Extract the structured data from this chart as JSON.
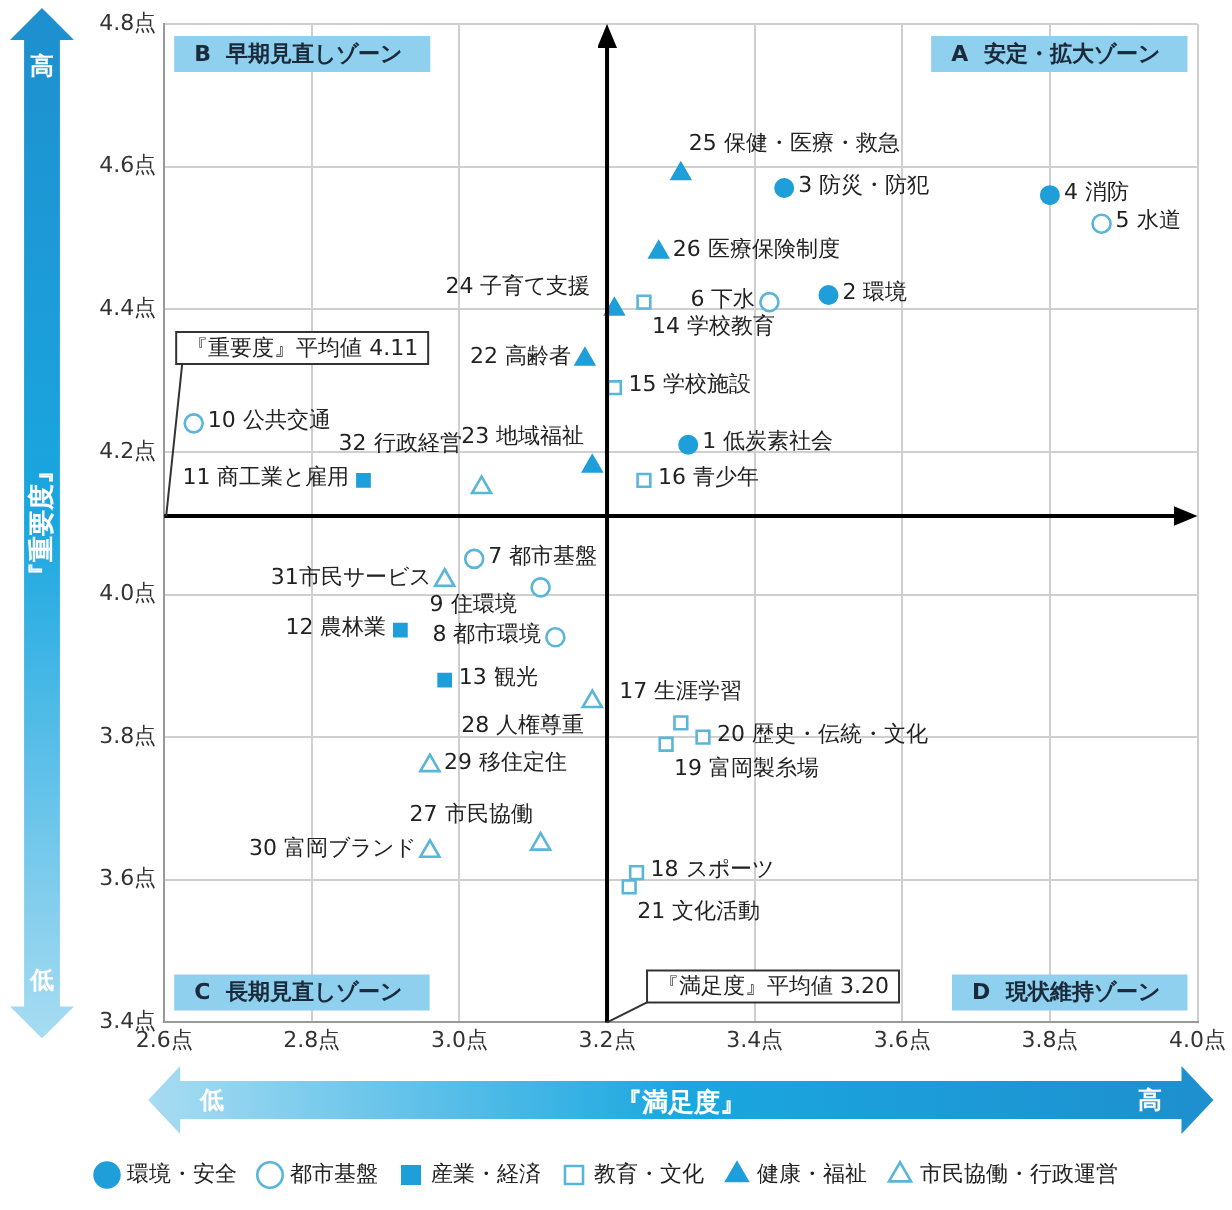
{
  "chart_data": {
    "type": "scatter",
    "xlabel": "『満足度』",
    "ylabel": "『重要度』",
    "xlim": [
      2.6,
      4.0
    ],
    "ylim": [
      3.4,
      4.8
    ],
    "xticks": [
      {
        "value": 2.6,
        "label": "2.6点"
      },
      {
        "value": 2.8,
        "label": "2.8点"
      },
      {
        "value": 3.0,
        "label": "3.0点"
      },
      {
        "value": 3.2,
        "label": "3.2点"
      },
      {
        "value": 3.4,
        "label": "3.4点"
      },
      {
        "value": 3.6,
        "label": "3.6点"
      },
      {
        "value": 3.8,
        "label": "3.8点"
      },
      {
        "value": 4.0,
        "label": "4.0点"
      }
    ],
    "yticks": [
      {
        "value": 3.4,
        "label": "3.4点"
      },
      {
        "value": 3.6,
        "label": "3.6点"
      },
      {
        "value": 3.8,
        "label": "3.8点"
      },
      {
        "value": 4.0,
        "label": "4.0点"
      },
      {
        "value": 4.2,
        "label": "4.2点"
      },
      {
        "value": 4.4,
        "label": "4.4点"
      },
      {
        "value": 4.6,
        "label": "4.6点"
      },
      {
        "value": 4.8,
        "label": "4.8点"
      }
    ],
    "grid": true,
    "legend": "bottom",
    "series": [
      {
        "name": "環境・安全",
        "color": "#1f9fd9",
        "marker": "circle",
        "x": [
          3.31,
          3.5,
          3.44,
          3.8
        ],
        "values": [
          4.21,
          4.42,
          4.57,
          4.56
        ]
      },
      {
        "name": "都市基盤",
        "color": "#5ab6d8",
        "marker": "circle",
        "x": [
          3.87,
          3.42,
          3.02,
          3.13,
          3.11,
          2.64
        ],
        "values": [
          4.52,
          4.41,
          4.05,
          3.94,
          4.01,
          4.24
        ]
      },
      {
        "name": "産業・経済",
        "color": "#1f9fd9",
        "marker": "square",
        "x": [
          2.87,
          2.92,
          2.98
        ],
        "values": [
          4.16,
          3.95,
          3.88
        ]
      },
      {
        "name": "教育・文化",
        "color": "#5ab6d8",
        "marker": "square",
        "x": [
          3.25,
          3.21,
          3.25,
          3.3,
          3.24,
          3.28,
          3.33,
          3.23
        ],
        "values": [
          4.41,
          4.29,
          4.16,
          3.82,
          3.61,
          3.79,
          3.8,
          3.59
        ]
      },
      {
        "name": "健康・福祉",
        "color": "#1f9fd9",
        "marker": "triangle",
        "x": [
          3.17,
          3.18,
          3.21,
          3.3,
          3.27
        ],
        "values": [
          4.33,
          4.18,
          4.4,
          4.59,
          4.48
        ]
      },
      {
        "name": "市民協働・行政運営",
        "color": "#5ab6d8",
        "marker": "triangle",
        "x": [
          3.11,
          3.18,
          2.96,
          2.96,
          2.98,
          3.03
        ],
        "values": [
          3.65,
          3.85,
          3.76,
          3.64,
          4.02,
          4.15
        ]
      }
    ],
    "ref_lines": [
      {
        "axis": "x",
        "value": 3.2,
        "label": "『満足度』平均値 3.20",
        "color": "#000000"
      },
      {
        "axis": "y",
        "value": 4.11,
        "label": "『重要度』平均値 4.11",
        "color": "#000000"
      }
    ],
    "annotations": [
      "B  早期見直しゾーン",
      "A  安定・拡大ゾーン",
      "C  長期見直しゾーン",
      "D  現状維持ゾーン",
      "低",
      "高",
      "高",
      "低",
      {
        "text": "1 低炭素社会",
        "x": 3.31,
        "y": 4.21
      },
      {
        "text": "2 環境",
        "x": 3.5,
        "y": 4.42
      },
      {
        "text": "3 防災・防犯",
        "x": 3.44,
        "y": 4.57
      },
      {
        "text": "4 消防",
        "x": 3.8,
        "y": 4.56
      },
      {
        "text": "5 水道",
        "x": 3.87,
        "y": 4.52
      },
      {
        "text": "6 下水",
        "x": 3.42,
        "y": 4.41
      },
      {
        "text": "7 都市基盤",
        "x": 3.02,
        "y": 4.05
      },
      {
        "text": "8 都市環境",
        "x": 3.13,
        "y": 3.94
      },
      {
        "text": "9 住環境",
        "x": 3.11,
        "y": 4.01
      },
      {
        "text": "10 公共交通",
        "x": 2.64,
        "y": 4.24
      },
      {
        "text": "11 商工業と雇用",
        "x": 2.87,
        "y": 4.16
      },
      {
        "text": "12 農林業",
        "x": 2.92,
        "y": 3.95
      },
      {
        "text": "13 観光",
        "x": 2.98,
        "y": 3.88
      },
      {
        "text": "14 学校教育",
        "x": 3.25,
        "y": 4.41
      },
      {
        "text": "15 学校施設",
        "x": 3.21,
        "y": 4.29
      },
      {
        "text": "16 青少年",
        "x": 3.25,
        "y": 4.16
      },
      {
        "text": "17 生涯学習",
        "x": 3.3,
        "y": 3.82
      },
      {
        "text": "18 スポーツ",
        "x": 3.24,
        "y": 3.61
      },
      {
        "text": "19 富岡製糸場",
        "x": 3.28,
        "y": 3.79
      },
      {
        "text": "20 歴史・伝統・文化",
        "x": 3.33,
        "y": 3.8
      },
      {
        "text": "21 文化活動",
        "x": 3.23,
        "y": 3.59
      },
      {
        "text": "22 高齢者",
        "x": 3.17,
        "y": 4.33
      },
      {
        "text": "23 地域福祉",
        "x": 3.18,
        "y": 4.18
      },
      {
        "text": "24 子育て支援",
        "x": 3.21,
        "y": 4.4
      },
      {
        "text": "25 保健・医療・救急",
        "x": 3.3,
        "y": 4.59
      },
      {
        "text": "26 医療保険制度",
        "x": 3.27,
        "y": 4.48
      },
      {
        "text": "27 市民協働",
        "x": 3.11,
        "y": 3.65
      },
      {
        "text": "28 人権尊重",
        "x": 3.18,
        "y": 3.85
      },
      {
        "text": "29 移住定住",
        "x": 2.96,
        "y": 3.76
      },
      {
        "text": "30 富岡ブランド",
        "x": 2.96,
        "y": 3.64
      },
      {
        "text": "31市民サービス",
        "x": 2.98,
        "y": 4.02
      },
      {
        "text": "32 行政経営",
        "x": 3.03,
        "y": 4.15
      }
    ]
  }
}
